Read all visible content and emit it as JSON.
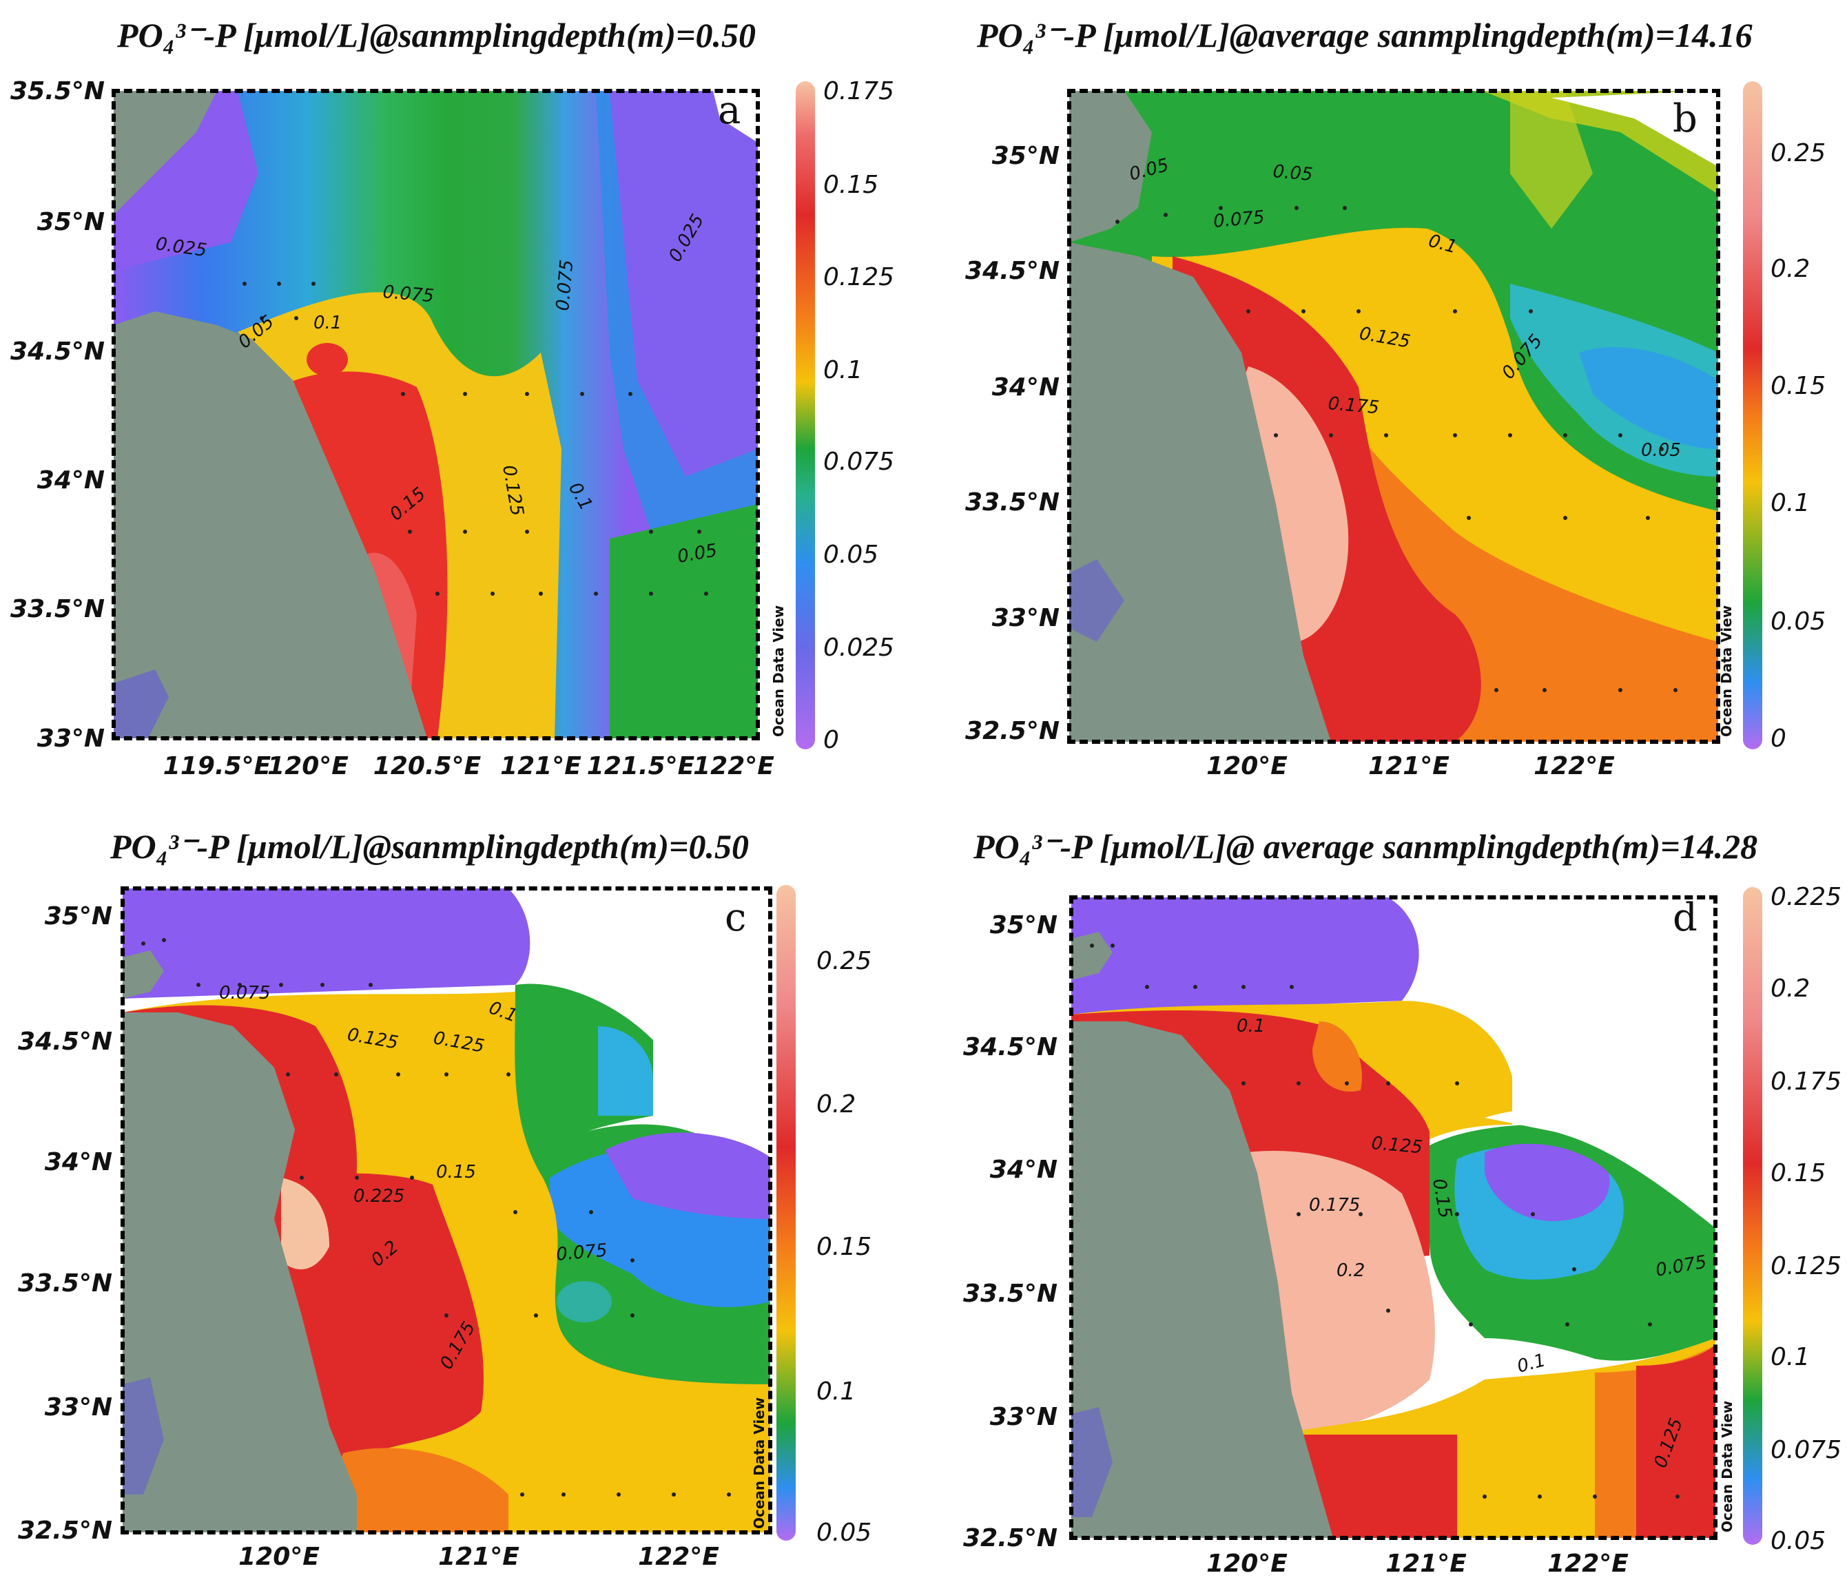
{
  "panels": [
    {
      "id": "a",
      "title": "PO₄³⁻-P [μmol/L]@sanmplingdepth(m)=0.50",
      "label": "a",
      "y_ticks": [
        "35.5°N",
        "35°N",
        "34.5°N",
        "34°N",
        "33.5°N",
        "33°N"
      ],
      "x_ticks": [
        "119.5°E",
        "120°E",
        "120.5°E",
        "121°E",
        "121.5°E",
        "122°E"
      ],
      "colorbar_ticks": [
        "0.175",
        "0.15",
        "0.125",
        "0.1",
        "0.075",
        "0.05",
        "0.025",
        "0"
      ],
      "contour_labels": [
        "0.025",
        "0.075",
        "0.1",
        "0.05",
        "0.075",
        "0.025",
        "0.15",
        "0.125",
        "0.1",
        "0.05"
      ],
      "watermark": "Ocean Data View"
    },
    {
      "id": "b",
      "title": "PO₄³⁻-P [μmol/L]@average sanmplingdepth(m)=14.16",
      "label": "b",
      "y_ticks": [
        "35°N",
        "34.5°N",
        "34°N",
        "33.5°N",
        "33°N",
        "32.5°N"
      ],
      "x_ticks": [
        "120°E",
        "121°E",
        "122°E"
      ],
      "colorbar_ticks": [
        "0.25",
        "0.2",
        "0.15",
        "0.1",
        "0.05",
        "0"
      ],
      "contour_labels": [
        "0.05",
        "0.05",
        "0.075",
        "0.1",
        "0.125",
        "0.075",
        "0.175",
        "0.05"
      ],
      "watermark": "Ocean Data View"
    },
    {
      "id": "c",
      "title": "PO₄³⁻-P [μmol/L]@sanmplingdepth(m)=0.50",
      "label": "c",
      "y_ticks": [
        "35°N",
        "34.5°N",
        "34°N",
        "33.5°N",
        "33°N",
        "32.5°N"
      ],
      "x_ticks": [
        "120°E",
        "121°E",
        "122°E"
      ],
      "colorbar_ticks": [
        "0.25",
        "0.2",
        "0.15",
        "0.1",
        "0.05"
      ],
      "contour_labels": [
        "0.075",
        "0.1",
        "0.125",
        "0.125",
        "0.225",
        "0.15",
        "0.2",
        "0.075",
        "0.175"
      ],
      "watermark": "Ocean Data View"
    },
    {
      "id": "d",
      "title": "PO₄³⁻-P [μmol/L]@ average sanmplingdepth(m)=14.28",
      "label": "d",
      "y_ticks": [
        "35°N",
        "34.5°N",
        "34°N",
        "33.5°N",
        "33°N",
        "32.5°N"
      ],
      "x_ticks": [
        "120°E",
        "121°E",
        "122°E"
      ],
      "colorbar_ticks": [
        "0.225",
        "0.2",
        "0.175",
        "0.15",
        "0.125",
        "0.1",
        "0.075",
        "0.05"
      ],
      "contour_labels": [
        "0.1",
        "0.125",
        "0.15",
        "0.175",
        "0.2",
        "0.075",
        "0.1",
        "0.125"
      ],
      "watermark": "Ocean Data View"
    }
  ],
  "colors": {
    "land": "#7f9486",
    "frame": "#000000",
    "scale_low": "#b36cf0",
    "scale_blue": "#2f8ff0",
    "scale_green": "#1ea53b",
    "scale_yellow": "#f5c20c",
    "scale_orange": "#f47b1a",
    "scale_red": "#e02a2a",
    "scale_high": "#f6c0a0"
  }
}
